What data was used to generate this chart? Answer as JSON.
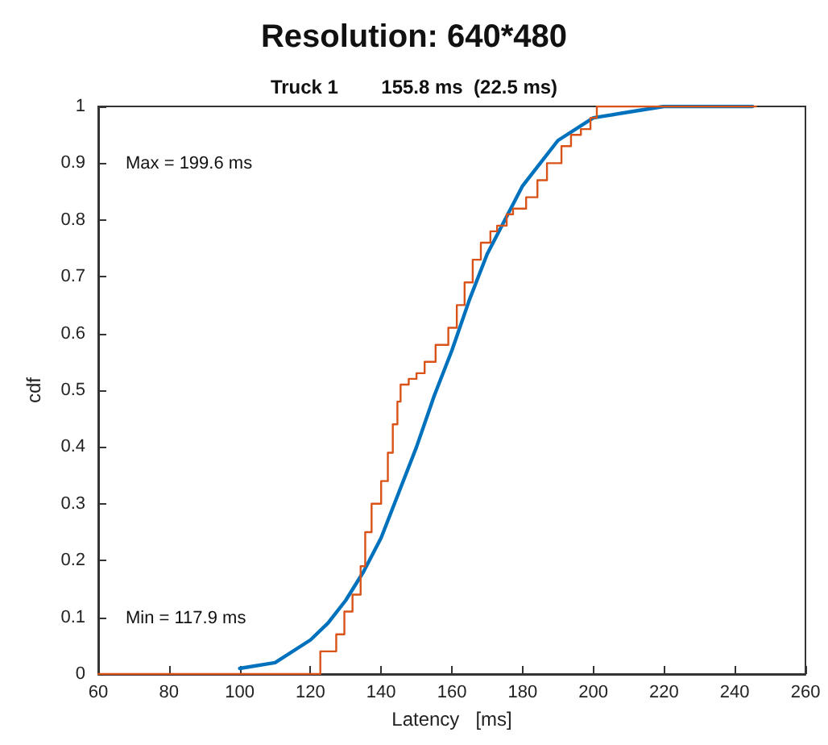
{
  "chart_data": {
    "type": "line",
    "title": "Resolution: 640*480",
    "subtitle": "Truck 1        155.8 ms  (22.5 ms)",
    "xlabel": "Latency   [ms]",
    "ylabel": "cdf",
    "annotations": [
      "Max = 199.6 ms",
      "Min = 117.9 ms"
    ],
    "xlim": [
      60,
      260
    ],
    "xticks": [
      60,
      80,
      100,
      120,
      140,
      160,
      180,
      200,
      220,
      240,
      260
    ],
    "ylim": [
      0,
      1
    ],
    "yticks": [
      0,
      0.1,
      0.2,
      0.3,
      0.4,
      0.5,
      0.6,
      0.7,
      0.8,
      0.9,
      1
    ],
    "grid": false,
    "marker": "none",
    "line_style": "solid",
    "series": [
      {
        "color": "#0072bd",
        "x": [
          100,
          110,
          120,
          125,
          130,
          135,
          140,
          145,
          150,
          155,
          160,
          165,
          170,
          175,
          180,
          185,
          190,
          200,
          210,
          220,
          230,
          245
        ],
        "values": [
          0.01,
          0.02,
          0.06,
          0.09,
          0.13,
          0.18,
          0.24,
          0.32,
          0.4,
          0.49,
          0.57,
          0.66,
          0.74,
          0.8,
          0.86,
          0.9,
          0.94,
          0.98,
          0.99,
          1,
          1,
          1
        ]
      },
      {
        "type": "step",
        "color": "#d95319",
        "x": [
          60,
          120.5,
          122.8,
          127.3,
          129.6,
          131.9,
          134.2,
          135.5,
          137.3,
          140,
          141.9,
          143.3,
          144.6,
          145.5,
          147.8,
          150,
          152.3,
          155.4,
          159,
          161.4,
          163.6,
          165.9,
          168.2,
          170.9,
          172.8,
          175.5,
          177.3,
          181,
          184.2,
          186.9,
          191,
          193.7,
          196.5,
          199.2,
          201,
          246
        ],
        "values": [
          0,
          0,
          0.04,
          0.07,
          0.11,
          0.14,
          0.19,
          0.25,
          0.3,
          0.34,
          0.39,
          0.44,
          0.48,
          0.51,
          0.52,
          0.53,
          0.55,
          0.58,
          0.61,
          0.65,
          0.69,
          0.73,
          0.76,
          0.78,
          0.79,
          0.81,
          0.82,
          0.84,
          0.87,
          0.9,
          0.93,
          0.95,
          0.96,
          0.98,
          1,
          1
        ]
      }
    ]
  }
}
